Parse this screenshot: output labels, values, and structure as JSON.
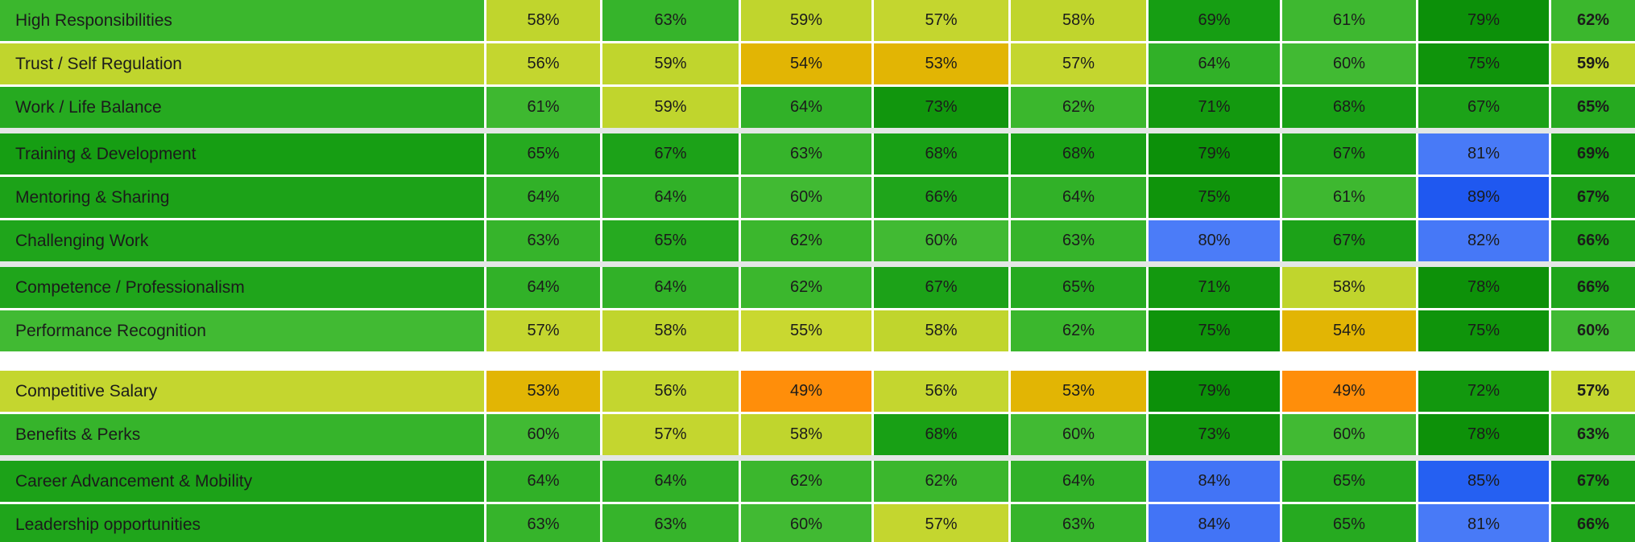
{
  "chart_data": {
    "type": "heatmap",
    "title": "",
    "unit": "%",
    "column_headers_visible": false,
    "last_column_is_overall": true,
    "text_color": "#1B1B1B",
    "separator_colors": {
      "thin": "#FFFFFF",
      "group": "#E3E7E5",
      "section": "#FFFFFF"
    },
    "color_scale": {
      "49": "#FF8E0A",
      "53": "#E2B504",
      "54": "#E2B504",
      "55": "#C9D830",
      "56": "#C4D62F",
      "57": "#C4D62F",
      "58": "#C0D52D",
      "59": "#C0D52D",
      "60": "#41BA33",
      "61": "#3EB830",
      "62": "#3BB72D",
      "63": "#36B42B",
      "64": "#31B128",
      "65": "#26AA20",
      "66": "#1FA51B",
      "67": "#1CA218",
      "68": "#18A015",
      "69": "#169E13",
      "71": "#13990F",
      "72": "#12980E",
      "73": "#11960D",
      "75": "#0F940B",
      "78": "#0D9109",
      "79": "#0C9009",
      "80": "#4B7CF8",
      "81": "#487AF7",
      "82": "#4678F7",
      "84": "#4274F6",
      "85": "#2560F2",
      "89": "#1F58F0"
    },
    "rows": [
      {
        "label": "High Responsibilities",
        "values": [
          58,
          63,
          59,
          57,
          58,
          69,
          61,
          79,
          62
        ],
        "sep_after": "thin"
      },
      {
        "label": "Trust / Self Regulation",
        "values": [
          56,
          59,
          54,
          53,
          57,
          64,
          60,
          75,
          59
        ],
        "sep_after": "thin"
      },
      {
        "label": "Work / Life Balance",
        "values": [
          61,
          59,
          64,
          73,
          62,
          71,
          68,
          67,
          65
        ],
        "sep_after": "group"
      },
      {
        "label": "Training & Development",
        "values": [
          65,
          67,
          63,
          68,
          68,
          79,
          67,
          81,
          69
        ],
        "sep_after": "thin"
      },
      {
        "label": "Mentoring & Sharing",
        "values": [
          64,
          64,
          60,
          66,
          64,
          75,
          61,
          89,
          67
        ],
        "sep_after": "thin"
      },
      {
        "label": "Challenging Work",
        "values": [
          63,
          65,
          62,
          60,
          63,
          80,
          67,
          82,
          66
        ],
        "sep_after": "group"
      },
      {
        "label": "Competence / Professionalism",
        "values": [
          64,
          64,
          62,
          67,
          65,
          71,
          58,
          78,
          66
        ],
        "sep_after": "thin"
      },
      {
        "label": "Performance Recognition",
        "values": [
          57,
          58,
          55,
          58,
          62,
          75,
          54,
          75,
          60
        ],
        "sep_after": "section"
      },
      {
        "label": "Competitive Salary",
        "values": [
          53,
          56,
          49,
          56,
          53,
          79,
          49,
          72,
          57
        ],
        "sep_after": "thin"
      },
      {
        "label": "Benefits & Perks",
        "values": [
          60,
          57,
          58,
          68,
          60,
          73,
          60,
          78,
          63
        ],
        "sep_after": "group"
      },
      {
        "label": "Career Advancement & Mobility",
        "values": [
          64,
          64,
          62,
          62,
          64,
          84,
          65,
          85,
          67
        ],
        "sep_after": "thin"
      },
      {
        "label": "Leadership opportunities",
        "values": [
          63,
          63,
          60,
          57,
          63,
          84,
          65,
          81,
          66
        ],
        "sep_after": "none"
      }
    ]
  }
}
